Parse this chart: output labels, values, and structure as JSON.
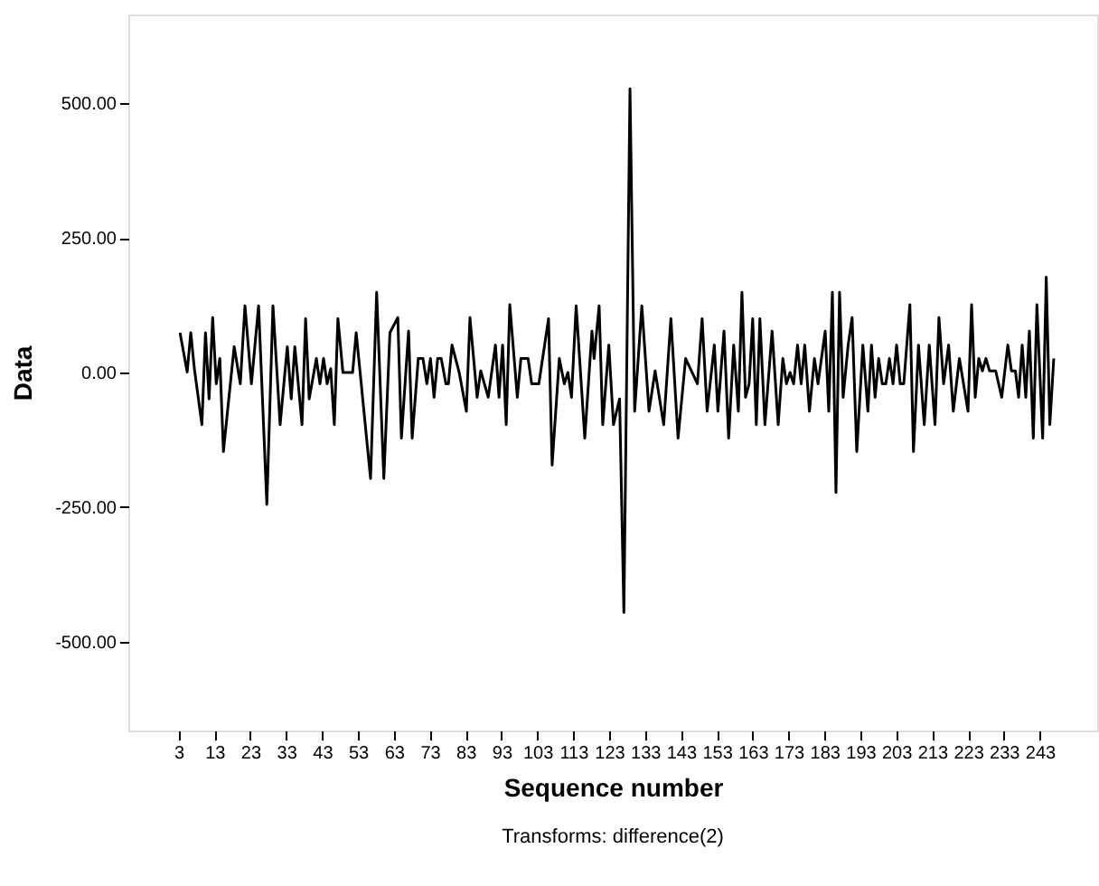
{
  "chart_data": {
    "type": "line",
    "xlabel": "Sequence number",
    "ylabel": "Data",
    "annotations": [
      "Transforms: difference(2)"
    ],
    "xlim": [
      -11,
      259
    ],
    "xticks": [
      3,
      13,
      23,
      33,
      43,
      53,
      63,
      73,
      83,
      93,
      103,
      113,
      123,
      133,
      143,
      153,
      163,
      173,
      183,
      193,
      203,
      213,
      223,
      233,
      243
    ],
    "ylim": [
      -665,
      665
    ],
    "yticks": [
      {
        "value": -500,
        "label": "-500.00"
      },
      {
        "value": -250,
        "label": "-250.00"
      },
      {
        "value": 0,
        "label": "0.00"
      },
      {
        "value": 250,
        "label": "250.00"
      },
      {
        "value": 500,
        "label": "500.00"
      }
    ],
    "grid": false,
    "line_style": "solid",
    "marker": "none",
    "series": [
      {
        "color": "#000000",
        "x": [
          3.4,
          5.4,
          6.4,
          7.4,
          9.5,
          10.5,
          11.5,
          12.5,
          13.5,
          14.5,
          15.5,
          16.9,
          18.5,
          20.2,
          21.5,
          23.3,
          25.3,
          27.6,
          29.3,
          31.3,
          33.3,
          34.4,
          35.4,
          37.4,
          38.4,
          39.4,
          41.4,
          42.4,
          43.4,
          44.4,
          45.4,
          46.4,
          47.4,
          48.8,
          51.5,
          52.5,
          56.5,
          58.2,
          60.2,
          61.9,
          64.1,
          65.1,
          67.1,
          68.1,
          69.8,
          71.1,
          72.2,
          73.2,
          74.2,
          75.2,
          76.2,
          77.5,
          78.2,
          79.2,
          81.2,
          83.2,
          84.2,
          86.2,
          87.2,
          89.3,
          91.3,
          92.3,
          93.3,
          94.3,
          95.3,
          97.4,
          98.4,
          100.4,
          101.4,
          103.4,
          106.1,
          107.1,
          109.1,
          110.5,
          111.5,
          112.5,
          113.8,
          116.2,
          118.2,
          118.8,
          120.2,
          121.2,
          122.9,
          124.2,
          125.9,
          127.1,
          128.8,
          130.1,
          132.1,
          134.1,
          135.8,
          138.2,
          140.2,
          142.2,
          144.3,
          145.9,
          147.6,
          148.9,
          150.3,
          152.3,
          153.3,
          155.0,
          156.3,
          157.7,
          159.0,
          160.0,
          161.0,
          162.0,
          163.0,
          164.0,
          165.0,
          166.4,
          168.4,
          170.1,
          171.4,
          172.4,
          173.4,
          174.4,
          175.5,
          176.5,
          177.5,
          178.8,
          180.2,
          181.2,
          183.2,
          184.2,
          185.2,
          186.2,
          187.2,
          188.2,
          189.6,
          190.7,
          192.0,
          193.7,
          195.1,
          196.1,
          197.1,
          198.1,
          199.1,
          200.1,
          201.1,
          202.1,
          203.1,
          204.1,
          205.1,
          206.8,
          207.8,
          209.2,
          210.8,
          212.2,
          213.8,
          214.9,
          216.2,
          217.6,
          218.9,
          220.6,
          223.0,
          224.0,
          225.0,
          226.0,
          227.0,
          228.0,
          229.0,
          230.7,
          232.4,
          234.1,
          235.1,
          236.2,
          237.1,
          238.1,
          239.1,
          240.1,
          241.2,
          242.2,
          243.8,
          244.8,
          245.8,
          246.9
        ],
        "values": [
          74,
          1,
          74,
          7,
          -97,
          74,
          -49,
          102,
          -21,
          26,
          -147,
          -55,
          48,
          -21,
          124,
          -21,
          124,
          -245,
          124,
          -97,
          48,
          -49,
          48,
          -97,
          100,
          -49,
          26,
          -21,
          26,
          -21,
          7,
          -97,
          100,
          0,
          0,
          74,
          -197,
          149,
          -197,
          74,
          102,
          -122,
          77,
          -122,
          26,
          26,
          -21,
          26,
          -46,
          26,
          26,
          -21,
          -21,
          51,
          0,
          -72,
          102,
          -46,
          3,
          -46,
          51,
          -46,
          51,
          -97,
          126,
          -46,
          26,
          26,
          -21,
          -21,
          100,
          -172,
          26,
          -21,
          0,
          -46,
          124,
          -122,
          77,
          26,
          124,
          -97,
          51,
          -97,
          -49,
          -446,
          527,
          -72,
          124,
          -72,
          3,
          -97,
          100,
          -122,
          26,
          3,
          -21,
          100,
          -72,
          51,
          -72,
          77,
          -122,
          51,
          -72,
          149,
          -46,
          -21,
          100,
          -97,
          100,
          -97,
          77,
          -97,
          26,
          -21,
          0,
          -21,
          51,
          -21,
          51,
          -72,
          26,
          -21,
          77,
          -72,
          149,
          -223,
          149,
          -46,
          51,
          102,
          -147,
          51,
          -72,
          51,
          -46,
          26,
          -21,
          -21,
          26,
          -21,
          51,
          -21,
          -21,
          126,
          -147,
          51,
          -97,
          51,
          -97,
          102,
          -21,
          51,
          -72,
          26,
          -72,
          126,
          -46,
          26,
          3,
          26,
          3,
          3,
          -46,
          51,
          3,
          3,
          -46,
          51,
          -46,
          77,
          -122,
          126,
          -122,
          177,
          -97,
          26
        ]
      }
    ]
  }
}
